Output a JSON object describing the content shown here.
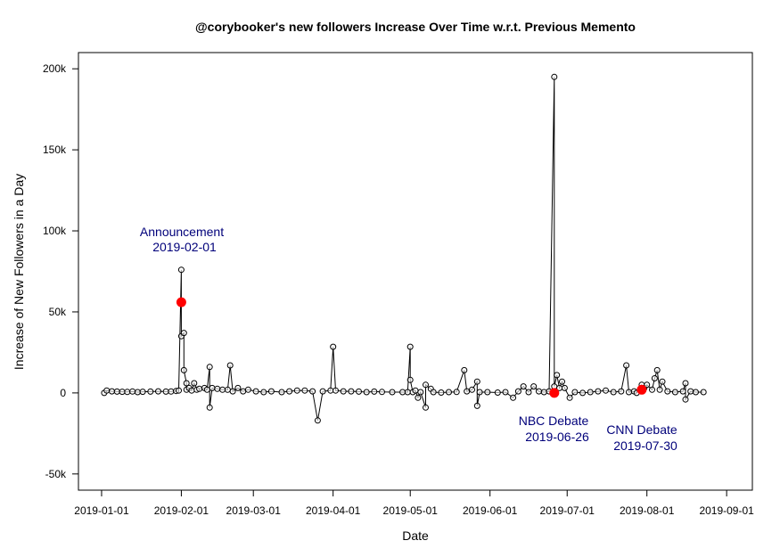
{
  "chart_data": {
    "type": "line",
    "title": "@corybooker's new followers Increase Over Time w.r.t. Previous Memento",
    "xlabel": "Date",
    "ylabel": "Increase of New Followers in a Day",
    "xlim": [
      "2018-12-23",
      "2019-09-11"
    ],
    "ylim": [
      -60000,
      210000
    ],
    "x_ticks": [
      "2019-01-01",
      "2019-02-01",
      "2019-03-01",
      "2019-04-01",
      "2019-05-01",
      "2019-06-01",
      "2019-07-01",
      "2019-08-01",
      "2019-09-01"
    ],
    "y_ticks": [
      -50000,
      0,
      50000,
      100000,
      150000,
      200000
    ],
    "y_tick_labels": [
      "-50k",
      "0",
      "50k",
      "100k",
      "150k",
      "200k"
    ],
    "grid": false,
    "series": [
      {
        "line_color": "#000000",
        "marker": "open-circle",
        "points": [
          [
            "2019-01-02",
            0
          ],
          [
            "2019-01-03",
            1500
          ],
          [
            "2019-01-05",
            1000
          ],
          [
            "2019-01-07",
            800
          ],
          [
            "2019-01-09",
            700
          ],
          [
            "2019-01-11",
            600
          ],
          [
            "2019-01-13",
            900
          ],
          [
            "2019-01-15",
            500
          ],
          [
            "2019-01-17",
            700
          ],
          [
            "2019-01-20",
            800
          ],
          [
            "2019-01-23",
            1000
          ],
          [
            "2019-01-26",
            800
          ],
          [
            "2019-01-28",
            900
          ],
          [
            "2019-01-30",
            1200
          ],
          [
            "2019-01-31",
            1500
          ],
          [
            "2019-02-01",
            76000
          ],
          [
            "2019-02-01",
            56000
          ],
          [
            "2019-02-01",
            35000
          ],
          [
            "2019-02-02",
            37000
          ],
          [
            "2019-02-02",
            14000
          ],
          [
            "2019-02-03",
            6000
          ],
          [
            "2019-02-03",
            2000
          ],
          [
            "2019-02-04",
            3000
          ],
          [
            "2019-02-05",
            1500
          ],
          [
            "2019-02-06",
            6000
          ],
          [
            "2019-02-07",
            2000
          ],
          [
            "2019-02-08",
            2500
          ],
          [
            "2019-02-10",
            3000
          ],
          [
            "2019-02-11",
            2000
          ],
          [
            "2019-02-12",
            16000
          ],
          [
            "2019-02-12",
            -9000
          ],
          [
            "2019-02-13",
            3000
          ],
          [
            "2019-02-15",
            2500
          ],
          [
            "2019-02-17",
            2000
          ],
          [
            "2019-02-19",
            2000
          ],
          [
            "2019-02-20",
            17000
          ],
          [
            "2019-02-21",
            1000
          ],
          [
            "2019-02-23",
            3000
          ],
          [
            "2019-02-25",
            1000
          ],
          [
            "2019-02-27",
            2000
          ],
          [
            "2019-03-02",
            1000
          ],
          [
            "2019-03-05",
            500
          ],
          [
            "2019-03-08",
            1000
          ],
          [
            "2019-03-12",
            500
          ],
          [
            "2019-03-15",
            1000
          ],
          [
            "2019-03-18",
            1500
          ],
          [
            "2019-03-21",
            1500
          ],
          [
            "2019-03-24",
            1000
          ],
          [
            "2019-03-26",
            -17000
          ],
          [
            "2019-03-28",
            1000
          ],
          [
            "2019-03-31",
            1500
          ],
          [
            "2019-04-01",
            28500
          ],
          [
            "2019-04-02",
            1500
          ],
          [
            "2019-04-05",
            1000
          ],
          [
            "2019-04-08",
            1000
          ],
          [
            "2019-04-11",
            800
          ],
          [
            "2019-04-14",
            500
          ],
          [
            "2019-04-17",
            800
          ],
          [
            "2019-04-20",
            600
          ],
          [
            "2019-04-24",
            500
          ],
          [
            "2019-04-28",
            500
          ],
          [
            "2019-04-30",
            500
          ],
          [
            "2019-05-01",
            28500
          ],
          [
            "2019-05-01",
            8000
          ],
          [
            "2019-05-02",
            500
          ],
          [
            "2019-05-03",
            1500
          ],
          [
            "2019-05-04",
            -3000
          ],
          [
            "2019-05-05",
            500
          ],
          [
            "2019-05-07",
            -9000
          ],
          [
            "2019-05-07",
            5000
          ],
          [
            "2019-05-09",
            2500
          ],
          [
            "2019-05-10",
            500
          ],
          [
            "2019-05-13",
            200
          ],
          [
            "2019-05-16",
            500
          ],
          [
            "2019-05-19",
            600
          ],
          [
            "2019-05-22",
            14000
          ],
          [
            "2019-05-23",
            1000
          ],
          [
            "2019-05-25",
            2000
          ],
          [
            "2019-05-27",
            7000
          ],
          [
            "2019-05-27",
            -8000
          ],
          [
            "2019-05-28",
            500
          ],
          [
            "2019-05-31",
            500
          ],
          [
            "2019-06-04",
            200
          ],
          [
            "2019-06-07",
            500
          ],
          [
            "2019-06-10",
            -3000
          ],
          [
            "2019-06-12",
            1000
          ],
          [
            "2019-06-14",
            4000
          ],
          [
            "2019-06-16",
            500
          ],
          [
            "2019-06-18",
            4000
          ],
          [
            "2019-06-20",
            1000
          ],
          [
            "2019-06-22",
            500
          ],
          [
            "2019-06-24",
            1000
          ],
          [
            "2019-06-26",
            195000
          ],
          [
            "2019-06-26",
            4000
          ],
          [
            "2019-06-27",
            11000
          ],
          [
            "2019-06-28",
            3000
          ],
          [
            "2019-06-29",
            7000
          ],
          [
            "2019-06-30",
            3000
          ],
          [
            "2019-07-02",
            -3000
          ],
          [
            "2019-07-04",
            500
          ],
          [
            "2019-07-07",
            0
          ],
          [
            "2019-07-10",
            500
          ],
          [
            "2019-07-13",
            1000
          ],
          [
            "2019-07-16",
            1500
          ],
          [
            "2019-07-19",
            500
          ],
          [
            "2019-07-22",
            1000
          ],
          [
            "2019-07-24",
            17000
          ],
          [
            "2019-07-25",
            500
          ],
          [
            "2019-07-27",
            1000
          ],
          [
            "2019-07-28",
            0
          ],
          [
            "2019-07-30",
            5000
          ],
          [
            "2019-07-31",
            3000
          ],
          [
            "2019-08-01",
            5000
          ],
          [
            "2019-08-03",
            2000
          ],
          [
            "2019-08-04",
            9000
          ],
          [
            "2019-08-05",
            14000
          ],
          [
            "2019-08-06",
            2000
          ],
          [
            "2019-08-07",
            7000
          ],
          [
            "2019-08-09",
            1000
          ],
          [
            "2019-08-12",
            500
          ],
          [
            "2019-08-15",
            1000
          ],
          [
            "2019-08-16",
            6000
          ],
          [
            "2019-08-16",
            -4000
          ],
          [
            "2019-08-18",
            1000
          ],
          [
            "2019-08-20",
            500
          ],
          [
            "2019-08-23",
            500
          ]
        ]
      }
    ],
    "highlights": [
      {
        "x": "2019-02-01",
        "y": 56000,
        "color": "#ff0000"
      },
      {
        "x": "2019-06-26",
        "y": 0,
        "color": "#ff0000"
      },
      {
        "x": "2019-07-30",
        "y": 2000,
        "color": "#ff0000"
      }
    ],
    "annotations": [
      {
        "lines": [
          "Announcement",
          "2019-02-01"
        ]
      },
      {
        "lines": [
          "NBC Debate",
          "2019-06-26"
        ]
      },
      {
        "lines": [
          "CNN Debate",
          "2019-07-30"
        ]
      }
    ],
    "annotation_color": "#00007a"
  }
}
